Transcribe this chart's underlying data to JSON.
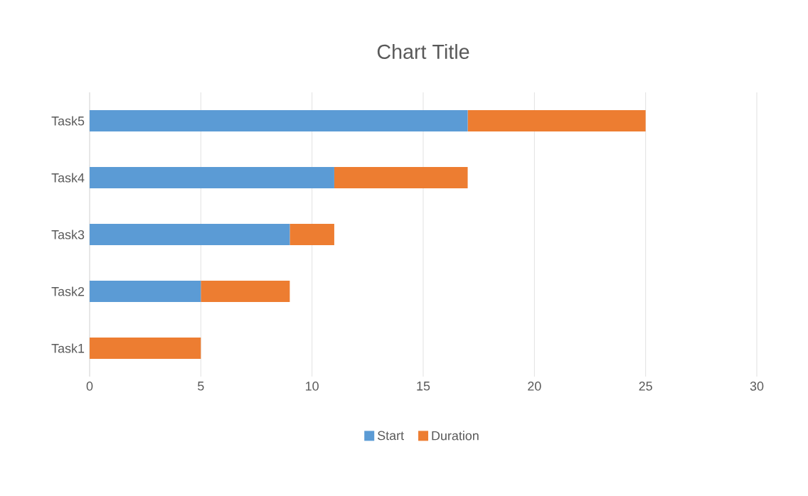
{
  "chart_data": {
    "type": "bar",
    "orientation": "horizontal",
    "stacked": true,
    "title": "Chart Title",
    "categories": [
      "Task5",
      "Task4",
      "Task3",
      "Task2",
      "Task1"
    ],
    "series": [
      {
        "name": "Start",
        "color": "#5b9bd5",
        "values": [
          17,
          11,
          9,
          5,
          0
        ]
      },
      {
        "name": "Duration",
        "color": "#ed7d31",
        "values": [
          8,
          6,
          2,
          4,
          5
        ]
      }
    ],
    "xlim": [
      0,
      30
    ],
    "xticks": [
      0,
      5,
      10,
      15,
      20,
      25,
      30
    ],
    "grid": "x",
    "legend": "bottom"
  }
}
